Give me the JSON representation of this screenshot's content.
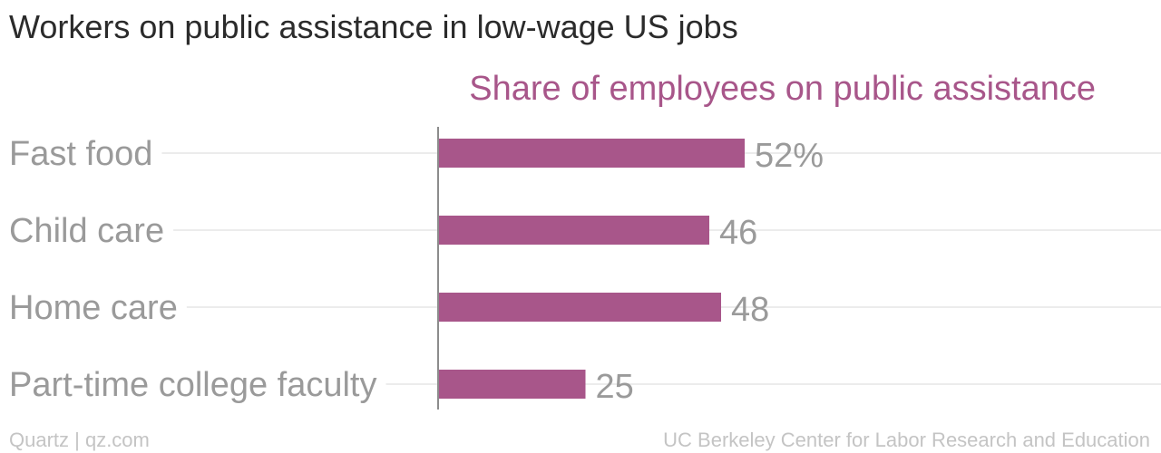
{
  "chart_data": {
    "type": "bar",
    "orientation": "horizontal",
    "title": "Workers on public assistance in low-wage US jobs",
    "series_title": "Share of employees on public assistance",
    "categories": [
      "Fast food",
      "Child care",
      "Home care",
      "Part-time college faculty"
    ],
    "values": [
      52,
      46,
      48,
      25
    ],
    "value_labels": [
      "52%",
      "46",
      "48",
      "25"
    ],
    "xlim": [
      0,
      100
    ],
    "grid": true,
    "legend": "none"
  },
  "footer": {
    "left": "Quartz | qz.com",
    "right": "UC Berkeley Center for Labor Research and Education"
  },
  "colors": {
    "bar": "#a8568a",
    "series_title": "#a8568a",
    "title": "#2b2b2b",
    "labels": "#9a9a9a",
    "gridline": "#ececec",
    "axis": "#8c8c8c",
    "footer": "#c4c4c4"
  }
}
